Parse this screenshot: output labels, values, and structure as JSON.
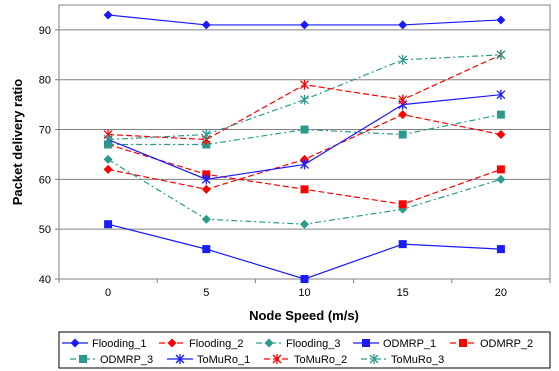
{
  "chart_data": {
    "type": "line",
    "x": [
      0,
      5,
      10,
      15,
      20
    ],
    "xlabel": "Node Speed (m/s)",
    "ylabel": "Packet delivery ratio",
    "ylim": [
      40,
      95
    ],
    "yticks": [
      40,
      50,
      60,
      70,
      80,
      90
    ],
    "grid": "horizontal",
    "legend_position": "bottom",
    "series": [
      {
        "name": "Flooding_1",
        "color": "#1a1aff",
        "dash": "solid",
        "marker": "diamond",
        "values": [
          93,
          91,
          91,
          91,
          92
        ]
      },
      {
        "name": "Flooding_2",
        "color": "#ff0000",
        "dash": "dashed",
        "marker": "diamond",
        "values": [
          62,
          58,
          64,
          73,
          69
        ]
      },
      {
        "name": "Flooding_3",
        "color": "#2b9a8e",
        "dash": "dashdot",
        "marker": "diamond",
        "values": [
          64,
          52,
          51,
          54,
          60
        ]
      },
      {
        "name": "ODMRP_1",
        "color": "#1a1aff",
        "dash": "solid",
        "marker": "square",
        "values": [
          51,
          46,
          40,
          47,
          46
        ]
      },
      {
        "name": "ODMRP_2",
        "color": "#ff0000",
        "dash": "dashed",
        "marker": "square",
        "values": [
          67,
          61,
          58,
          55,
          62
        ]
      },
      {
        "name": "ODMRP_3",
        "color": "#2b9a8e",
        "dash": "dashdot",
        "marker": "square",
        "values": [
          67,
          67,
          70,
          69,
          73
        ]
      },
      {
        "name": "ToMuRo_1",
        "color": "#1a1aff",
        "dash": "solid",
        "marker": "star",
        "values": [
          68,
          60,
          63,
          75,
          77
        ]
      },
      {
        "name": "ToMuRo_2",
        "color": "#ff0000",
        "dash": "dashed",
        "marker": "star",
        "values": [
          69,
          68,
          79,
          76,
          85
        ]
      },
      {
        "name": "ToMuRo_3",
        "color": "#2b9a8e",
        "dash": "dashdot",
        "marker": "star",
        "values": [
          68,
          69,
          76,
          84,
          85
        ]
      }
    ]
  }
}
